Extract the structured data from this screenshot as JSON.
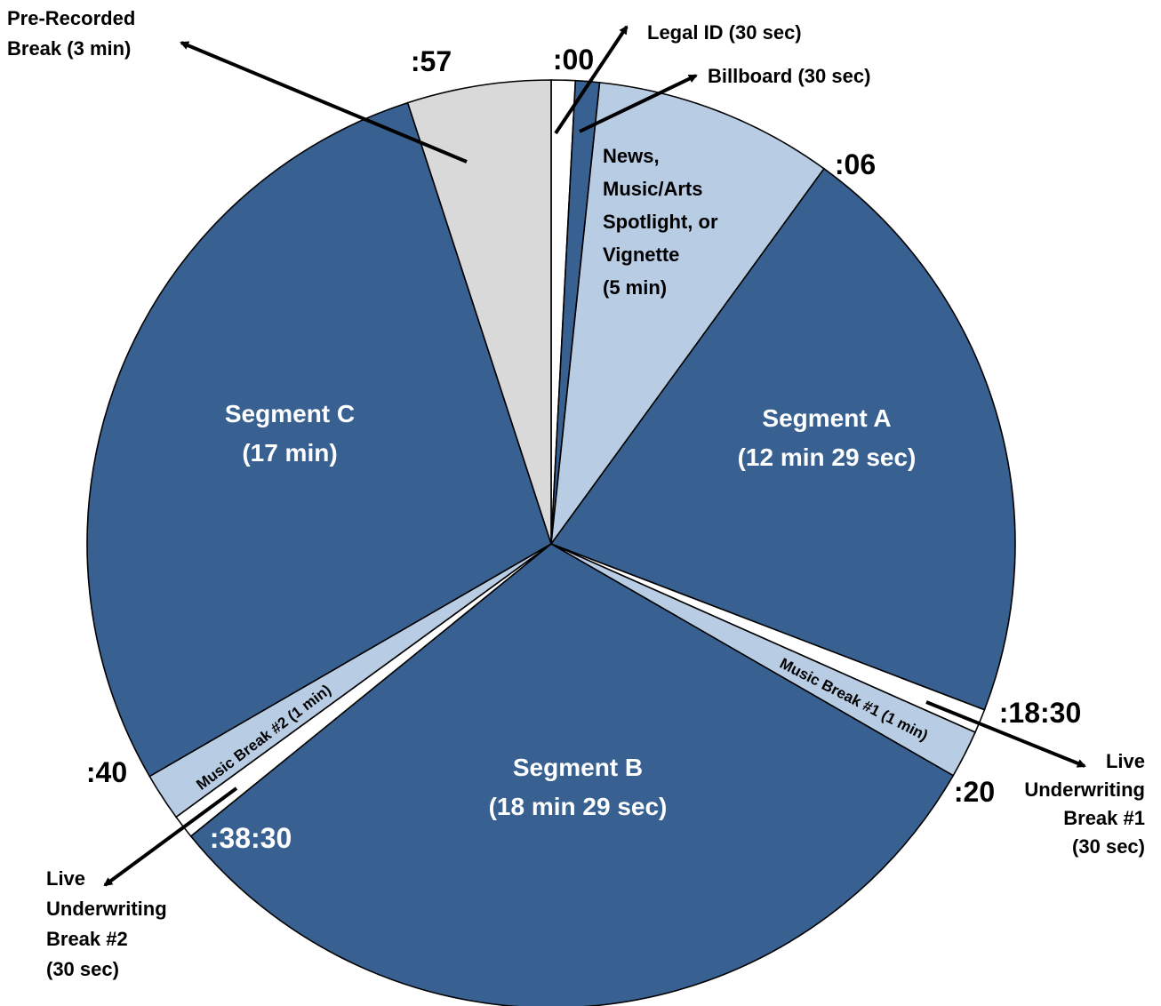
{
  "colors": {
    "dark": "#386192",
    "light": "#b8cce4",
    "gray": "#d9d9d9",
    "white": "#ffffff",
    "ink": "#000000"
  },
  "chart_data": {
    "type": "pie",
    "unit": "minutes",
    "start": "top, clockwise",
    "slices": [
      {
        "name": "Legal ID (30 sec)",
        "value": 0.5,
        "color": "white"
      },
      {
        "name": "Billboard (30 sec)",
        "value": 0.5,
        "color": "dark"
      },
      {
        "name": "News, Music/Arts Spotlight, or Vignette (5 min)",
        "value": 5,
        "color": "light"
      },
      {
        "name": "Segment A (12 min 29 sec)",
        "value": 12.4833,
        "color": "dark"
      },
      {
        "name": "Live Underwriting Break #1 (30 sec)",
        "value": 0.5,
        "color": "white"
      },
      {
        "name": "Music Break #1 (1 min)",
        "value": 1,
        "color": "light"
      },
      {
        "name": "Segment B (18 min 29 sec)",
        "value": 18.4833,
        "color": "dark"
      },
      {
        "name": "Live Underwriting Break #2 (30 sec)",
        "value": 0.5,
        "color": "white"
      },
      {
        "name": "Music Break #2 (1 min)",
        "value": 1,
        "color": "light"
      },
      {
        "name": "Segment C (17 min)",
        "value": 17,
        "color": "dark"
      },
      {
        "name": "Pre-Recorded Break (3 min)",
        "value": 3,
        "color": "gray"
      }
    ],
    "time_marks": [
      ":00",
      ":06",
      ":18:30",
      ":20",
      ":38:30",
      ":40",
      ":57"
    ],
    "inner_labels": {
      "news": [
        "News,",
        "Music/Arts",
        "Spotlight, or",
        "Vignette",
        "(5 min)"
      ],
      "segment_a": [
        "Segment A",
        "(12 min 29 sec)"
      ],
      "segment_b": [
        "Segment B",
        "(18 min 29 sec)"
      ],
      "segment_c": [
        "Segment C",
        "(17 min)"
      ],
      "music_break_1": "Music Break #1 (1 min)",
      "music_break_2": "Music Break #2 (1 min)"
    },
    "callouts": {
      "legal_id": "Legal ID (30 sec)",
      "billboard": "Billboard (30 sec)",
      "pre_recorded": [
        "Pre-Recorded",
        "Break (3 min)"
      ],
      "underwriting_1": [
        "Live",
        "Underwriting",
        "Break #1",
        "(30 sec)"
      ],
      "underwriting_2": [
        "Live",
        "Underwriting",
        "Break #2",
        "(30 sec)"
      ]
    }
  }
}
